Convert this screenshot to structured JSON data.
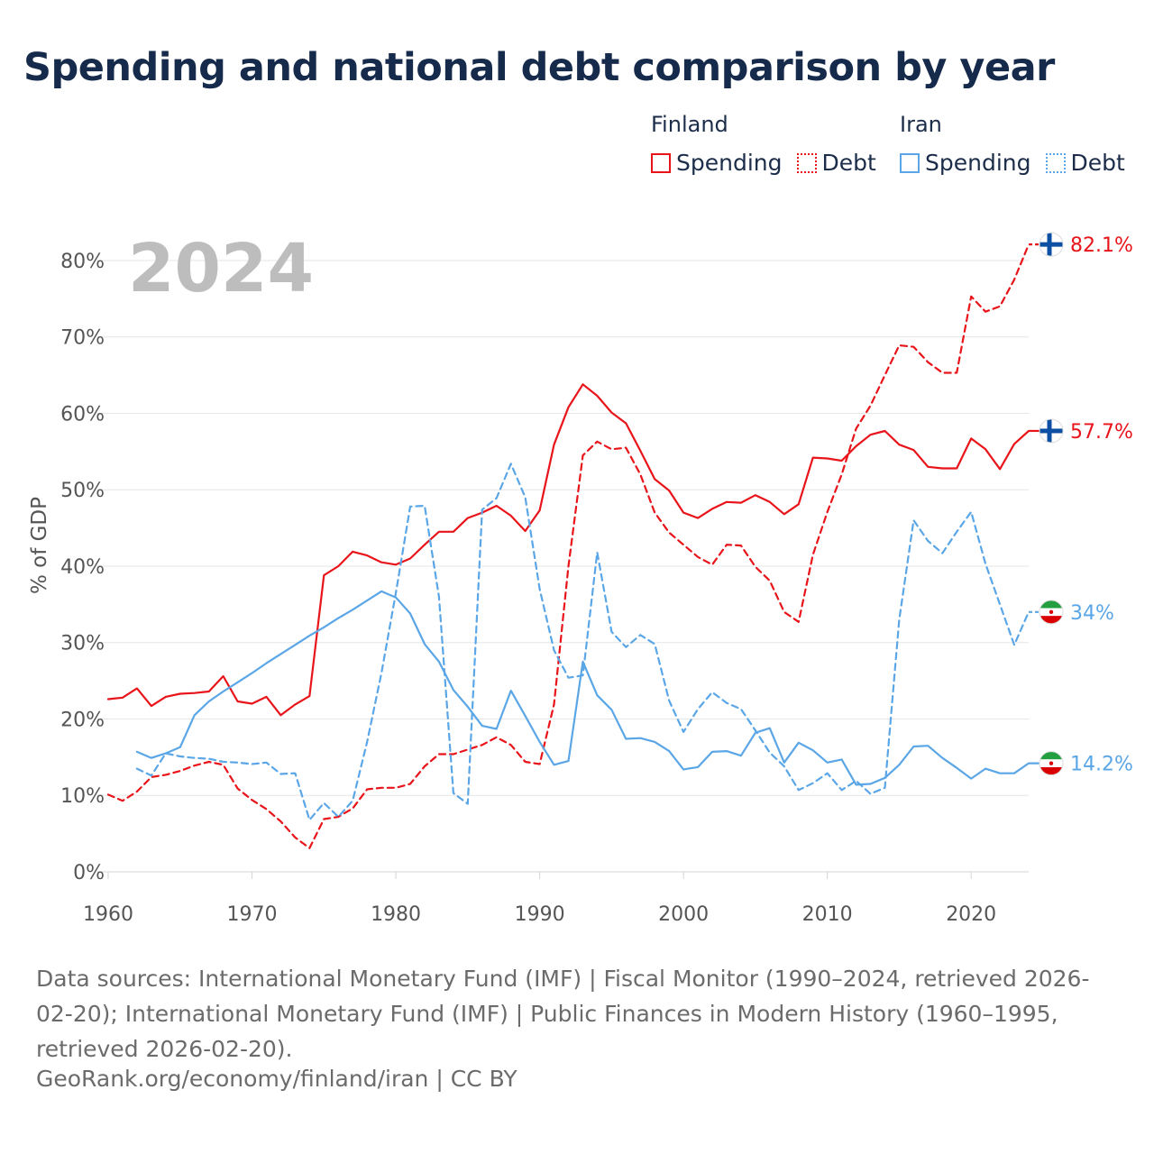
{
  "chart_data": {
    "type": "line",
    "title": "Spending and national debt comparison by year",
    "ylabel": "% of GDP",
    "xlabel": "",
    "year_label": "2024",
    "xlim": [
      1960,
      2024
    ],
    "ylim": [
      0,
      82
    ],
    "y_ticks": [
      0,
      10,
      20,
      30,
      40,
      50,
      60,
      70,
      80
    ],
    "y_tick_labels": [
      "0%",
      "10%",
      "20%",
      "30%",
      "40%",
      "50%",
      "60%",
      "70%",
      "80%"
    ],
    "x_ticks": [
      1960,
      1970,
      1980,
      1990,
      2000,
      2010,
      2020
    ],
    "x_tick_labels": [
      "1960",
      "1970",
      "1980",
      "1990",
      "2000",
      "2010",
      "2020"
    ],
    "grid": true,
    "legend": {
      "position": "top-right",
      "groups": [
        {
          "country": "Finland",
          "items": [
            {
              "label": "Spending",
              "style": "solid",
              "color": "#e8141a"
            },
            {
              "label": "Debt",
              "style": "dashed",
              "color": "#e8141a"
            }
          ]
        },
        {
          "country": "Iran",
          "items": [
            {
              "label": "Spending",
              "style": "solid",
              "color": "#5aa6e6"
            },
            {
              "label": "Debt",
              "style": "dashed",
              "color": "#5aa6e6"
            }
          ]
        }
      ]
    },
    "series": [
      {
        "name": "Finland Debt",
        "country": "Finland",
        "measure": "Debt",
        "color": "#e8141a",
        "dashed": true,
        "end_label": "82.1%",
        "flag": "finland",
        "points": [
          [
            1960,
            10.1
          ],
          [
            1961,
            9.3
          ],
          [
            1962,
            10.5
          ],
          [
            1963,
            12.4
          ],
          [
            1964,
            12.7
          ],
          [
            1965,
            13.2
          ],
          [
            1966,
            13.9
          ],
          [
            1967,
            14.4
          ],
          [
            1968,
            14.0
          ],
          [
            1969,
            10.9
          ],
          [
            1970,
            9.4
          ],
          [
            1971,
            8.2
          ],
          [
            1972,
            6.6
          ],
          [
            1973,
            4.5
          ],
          [
            1974,
            3.1
          ],
          [
            1975,
            6.9
          ],
          [
            1976,
            7.2
          ],
          [
            1977,
            8.3
          ],
          [
            1978,
            10.8
          ],
          [
            1979,
            11.0
          ],
          [
            1980,
            11.0
          ],
          [
            1981,
            11.5
          ],
          [
            1982,
            13.8
          ],
          [
            1983,
            15.4
          ],
          [
            1984,
            15.4
          ],
          [
            1985,
            16.0
          ],
          [
            1986,
            16.6
          ],
          [
            1987,
            17.6
          ],
          [
            1988,
            16.6
          ],
          [
            1989,
            14.4
          ],
          [
            1990,
            14.1
          ],
          [
            1991,
            21.9
          ],
          [
            1992,
            40.0
          ],
          [
            1993,
            54.5
          ],
          [
            1994,
            56.3
          ],
          [
            1995,
            55.3
          ],
          [
            1996,
            55.5
          ],
          [
            1997,
            52.0
          ],
          [
            1998,
            47.0
          ],
          [
            1999,
            44.4
          ],
          [
            2000,
            42.8
          ],
          [
            2001,
            41.2
          ],
          [
            2002,
            40.2
          ],
          [
            2003,
            42.8
          ],
          [
            2004,
            42.7
          ],
          [
            2005,
            39.9
          ],
          [
            2006,
            38.1
          ],
          [
            2007,
            34.0
          ],
          [
            2008,
            32.7
          ],
          [
            2009,
            41.5
          ],
          [
            2010,
            47.1
          ],
          [
            2011,
            52.0
          ],
          [
            2012,
            58.0
          ],
          [
            2013,
            61.0
          ],
          [
            2014,
            65.0
          ],
          [
            2015,
            68.9
          ],
          [
            2016,
            68.7
          ],
          [
            2017,
            66.7
          ],
          [
            2018,
            65.3
          ],
          [
            2019,
            65.3
          ],
          [
            2020,
            75.3
          ],
          [
            2021,
            73.3
          ],
          [
            2022,
            74.0
          ],
          [
            2023,
            77.5
          ],
          [
            2024,
            82.1
          ]
        ]
      },
      {
        "name": "Finland Spending",
        "country": "Finland",
        "measure": "Spending",
        "color": "#e8141a",
        "dashed": false,
        "end_label": "57.7%",
        "flag": "finland",
        "points": [
          [
            1960,
            22.6
          ],
          [
            1961,
            22.8
          ],
          [
            1962,
            24.0
          ],
          [
            1963,
            21.7
          ],
          [
            1964,
            22.9
          ],
          [
            1965,
            23.3
          ],
          [
            1966,
            23.4
          ],
          [
            1967,
            23.6
          ],
          [
            1968,
            25.6
          ],
          [
            1969,
            22.3
          ],
          [
            1970,
            22.0
          ],
          [
            1971,
            22.9
          ],
          [
            1972,
            20.5
          ],
          [
            1973,
            21.9
          ],
          [
            1974,
            23.0
          ],
          [
            1975,
            38.8
          ],
          [
            1976,
            40.0
          ],
          [
            1977,
            41.9
          ],
          [
            1978,
            41.4
          ],
          [
            1979,
            40.5
          ],
          [
            1980,
            40.2
          ],
          [
            1981,
            41.0
          ],
          [
            1982,
            42.8
          ],
          [
            1983,
            44.5
          ],
          [
            1984,
            44.5
          ],
          [
            1985,
            46.3
          ],
          [
            1986,
            47.0
          ],
          [
            1987,
            47.9
          ],
          [
            1988,
            46.6
          ],
          [
            1989,
            44.6
          ],
          [
            1990,
            47.3
          ],
          [
            1991,
            55.9
          ],
          [
            1992,
            60.8
          ],
          [
            1993,
            63.8
          ],
          [
            1994,
            62.3
          ],
          [
            1995,
            60.1
          ],
          [
            1996,
            58.7
          ],
          [
            1997,
            55.1
          ],
          [
            1998,
            51.4
          ],
          [
            1999,
            49.9
          ],
          [
            2000,
            47.0
          ],
          [
            2001,
            46.3
          ],
          [
            2002,
            47.5
          ],
          [
            2003,
            48.4
          ],
          [
            2004,
            48.3
          ],
          [
            2005,
            49.3
          ],
          [
            2006,
            48.4
          ],
          [
            2007,
            46.8
          ],
          [
            2008,
            48.1
          ],
          [
            2009,
            54.2
          ],
          [
            2010,
            54.1
          ],
          [
            2011,
            53.8
          ],
          [
            2012,
            55.7
          ],
          [
            2013,
            57.2
          ],
          [
            2014,
            57.7
          ],
          [
            2015,
            55.9
          ],
          [
            2016,
            55.2
          ],
          [
            2017,
            53.0
          ],
          [
            2018,
            52.8
          ],
          [
            2019,
            52.8
          ],
          [
            2020,
            56.7
          ],
          [
            2021,
            55.3
          ],
          [
            2022,
            52.7
          ],
          [
            2023,
            56.0
          ],
          [
            2024,
            57.7
          ]
        ]
      },
      {
        "name": "Iran Debt",
        "country": "Iran",
        "measure": "Debt",
        "color": "#5aa6e6",
        "dashed": true,
        "end_label": "34%",
        "flag": "iran",
        "points": [
          [
            1962,
            13.5
          ],
          [
            1963,
            12.6
          ],
          [
            1964,
            15.5
          ],
          [
            1965,
            15.1
          ],
          [
            1966,
            14.9
          ],
          [
            1967,
            14.8
          ],
          [
            1968,
            14.4
          ],
          [
            1969,
            14.3
          ],
          [
            1970,
            14.1
          ],
          [
            1971,
            14.3
          ],
          [
            1972,
            12.8
          ],
          [
            1973,
            12.9
          ],
          [
            1974,
            6.8
          ],
          [
            1975,
            9.0
          ],
          [
            1976,
            7.2
          ],
          [
            1977,
            9.3
          ],
          [
            1978,
            17.0
          ],
          [
            1979,
            26.0
          ],
          [
            1980,
            36.5
          ],
          [
            1981,
            47.8
          ],
          [
            1982,
            47.9
          ],
          [
            1983,
            36.0
          ],
          [
            1984,
            10.3
          ],
          [
            1985,
            8.9
          ],
          [
            1986,
            47.4
          ],
          [
            1987,
            48.9
          ],
          [
            1988,
            53.4
          ],
          [
            1989,
            49.0
          ],
          [
            1990,
            37.0
          ],
          [
            1991,
            29.0
          ],
          [
            1992,
            25.4
          ],
          [
            1993,
            25.7
          ],
          [
            1994,
            41.8
          ],
          [
            1995,
            31.4
          ],
          [
            1996,
            29.4
          ],
          [
            1997,
            31.0
          ],
          [
            1998,
            29.8
          ],
          [
            1999,
            22.4
          ],
          [
            2000,
            18.3
          ],
          [
            2001,
            21.3
          ],
          [
            2002,
            23.5
          ],
          [
            2003,
            22.1
          ],
          [
            2004,
            21.3
          ],
          [
            2005,
            18.5
          ],
          [
            2006,
            15.6
          ],
          [
            2007,
            13.8
          ],
          [
            2008,
            10.7
          ],
          [
            2009,
            11.6
          ],
          [
            2010,
            12.9
          ],
          [
            2011,
            10.7
          ],
          [
            2012,
            11.9
          ],
          [
            2013,
            10.2
          ],
          [
            2014,
            11.0
          ],
          [
            2015,
            33.0
          ],
          [
            2016,
            46.0
          ],
          [
            2017,
            43.3
          ],
          [
            2018,
            41.7
          ],
          [
            2019,
            44.5
          ],
          [
            2020,
            47.1
          ],
          [
            2021,
            40.3
          ],
          [
            2022,
            35.0
          ],
          [
            2023,
            29.7
          ],
          [
            2024,
            34.0
          ]
        ]
      },
      {
        "name": "Iran Spending",
        "country": "Iran",
        "measure": "Spending",
        "color": "#5aa6e6",
        "dashed": false,
        "end_label": "14.2%",
        "flag": "iran",
        "points": [
          [
            1962,
            15.7
          ],
          [
            1963,
            14.9
          ],
          [
            1964,
            15.5
          ],
          [
            1965,
            16.3
          ],
          [
            1966,
            20.5
          ],
          [
            1967,
            22.3
          ],
          [
            1968,
            23.6
          ],
          [
            1969,
            24.8
          ],
          [
            1970,
            26.0
          ],
          [
            1971,
            27.3
          ],
          [
            1972,
            28.5
          ],
          [
            1973,
            29.7
          ],
          [
            1974,
            30.9
          ],
          [
            1975,
            32.0
          ],
          [
            1976,
            33.2
          ],
          [
            1977,
            34.3
          ],
          [
            1978,
            35.5
          ],
          [
            1979,
            36.7
          ],
          [
            1980,
            35.9
          ],
          [
            1981,
            33.8
          ],
          [
            1982,
            29.8
          ],
          [
            1983,
            27.5
          ],
          [
            1984,
            23.8
          ],
          [
            1985,
            21.6
          ],
          [
            1986,
            19.1
          ],
          [
            1987,
            18.7
          ],
          [
            1988,
            23.7
          ],
          [
            1989,
            20.4
          ],
          [
            1990,
            17.0
          ],
          [
            1991,
            14.0
          ],
          [
            1992,
            14.5
          ],
          [
            1993,
            27.5
          ],
          [
            1994,
            23.1
          ],
          [
            1995,
            21.2
          ],
          [
            1996,
            17.4
          ],
          [
            1997,
            17.5
          ],
          [
            1998,
            17.0
          ],
          [
            1999,
            15.8
          ],
          [
            2000,
            13.4
          ],
          [
            2001,
            13.7
          ],
          [
            2002,
            15.7
          ],
          [
            2003,
            15.8
          ],
          [
            2004,
            15.2
          ],
          [
            2005,
            18.2
          ],
          [
            2006,
            18.8
          ],
          [
            2007,
            14.3
          ],
          [
            2008,
            16.9
          ],
          [
            2009,
            15.9
          ],
          [
            2010,
            14.3
          ],
          [
            2011,
            14.7
          ],
          [
            2012,
            11.4
          ],
          [
            2013,
            11.5
          ],
          [
            2014,
            12.3
          ],
          [
            2015,
            14.0
          ],
          [
            2016,
            16.4
          ],
          [
            2017,
            16.5
          ],
          [
            2018,
            14.9
          ],
          [
            2019,
            13.6
          ],
          [
            2020,
            12.2
          ],
          [
            2021,
            13.5
          ],
          [
            2022,
            12.9
          ],
          [
            2023,
            12.9
          ],
          [
            2024,
            14.2
          ]
        ]
      }
    ]
  },
  "footer": {
    "source": "Data sources: International Monetary Fund (IMF) | Fiscal Monitor (1990–2024, retrieved 2026-02-20); International Monetary Fund (IMF) | Public Finances in Modern History (1960–1995, retrieved 2026-02-20).",
    "credit": "GeoRank.org/economy/finland/iran | CC BY"
  }
}
